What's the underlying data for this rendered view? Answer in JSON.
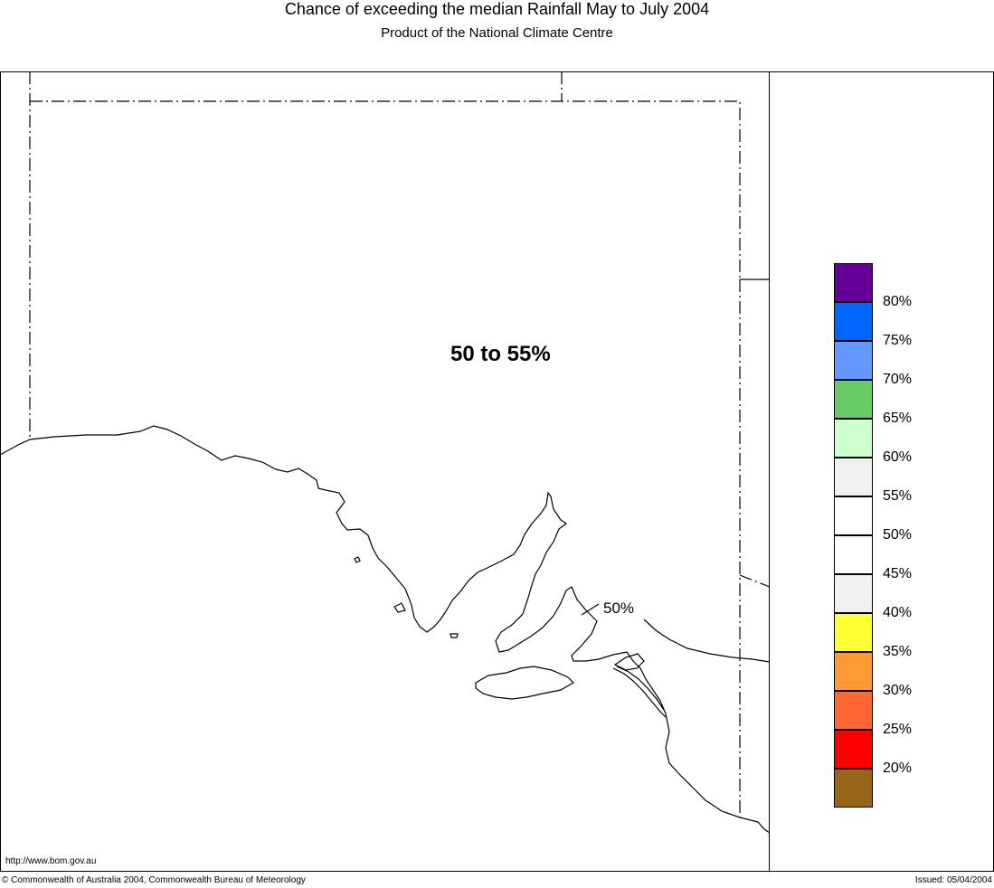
{
  "title": "Chance of exceeding the median Rainfall May to July 2004",
  "subtitle": "Product of the National Climate Centre",
  "region_label": "50 to 55%",
  "contour_label": "50%",
  "url": "http://www.bom.gov.au",
  "copyright": "© Commonwealth of Australia 2004, Commonwealth Bureau of Meteorology",
  "issued": "Issued: 05/04/2004",
  "legend": {
    "swatches": [
      {
        "color": "#660099"
      },
      {
        "color": "#0066ff"
      },
      {
        "color": "#6699ff"
      },
      {
        "color": "#66cc66"
      },
      {
        "color": "#ccffcc"
      },
      {
        "color": "#f0f0f0"
      },
      {
        "color": "#ffffff"
      },
      {
        "color": "#ffffff"
      },
      {
        "color": "#f0f0f0"
      },
      {
        "color": "#ffff33"
      },
      {
        "color": "#ff9933"
      },
      {
        "color": "#ff6633"
      },
      {
        "color": "#ff0000"
      },
      {
        "color": "#996619"
      }
    ],
    "labels": [
      "80%",
      "75%",
      "70%",
      "65%",
      "60%",
      "55%",
      "50%",
      "45%",
      "40%",
      "35%",
      "30%",
      "25%",
      "20%"
    ]
  }
}
